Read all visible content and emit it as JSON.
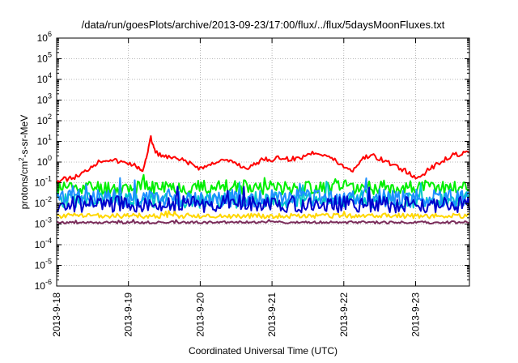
{
  "chart_data": {
    "type": "line",
    "title": "/data/run/goesPlots/archive/2013-09-23/17:00/flux/../flux/5daysMoonFluxes.txt",
    "xlabel": "Coordinated Universal Time (UTC)",
    "ylabel": "protons/cm²-s-sr-MeV",
    "ylabel_parts": {
      "pre": "protons/cm",
      "sup": "2",
      "post": "-s-sr-MeV"
    },
    "y_scale": "log",
    "ylim": [
      1e-06,
      1000000.0
    ],
    "y_ticks": [
      {
        "value": 1e-06,
        "base": "10",
        "exp": "-6"
      },
      {
        "value": 1e-05,
        "base": "10",
        "exp": "-5"
      },
      {
        "value": 0.0001,
        "base": "10",
        "exp": "-4"
      },
      {
        "value": 0.001,
        "base": "10",
        "exp": "-3"
      },
      {
        "value": 0.01,
        "base": "10",
        "exp": "-2"
      },
      {
        "value": 0.1,
        "base": "10",
        "exp": "-1"
      },
      {
        "value": 1.0,
        "base": "10",
        "exp": "0"
      },
      {
        "value": 10.0,
        "base": "10",
        "exp": "1"
      },
      {
        "value": 100.0,
        "base": "10",
        "exp": "2"
      },
      {
        "value": 1000.0,
        "base": "10",
        "exp": "3"
      },
      {
        "value": 10000.0,
        "base": "10",
        "exp": "4"
      },
      {
        "value": 100000.0,
        "base": "10",
        "exp": "5"
      },
      {
        "value": 1000000.0,
        "base": "10",
        "exp": "6"
      }
    ],
    "xlim": [
      "2013-09-18T00:00",
      "2013-09-23T18:00"
    ],
    "x_ticks": [
      "2013-9-18",
      "2013-9-19",
      "2013-9-20",
      "2013-9-21",
      "2013-9-22",
      "2013-9-23"
    ],
    "grid": true,
    "colors": {
      "axis": "#000000",
      "grid": "#a0a0a0"
    },
    "series": [
      {
        "color": "#ff0000",
        "points": [
          [
            "2013-09-18T00:00",
            0.12
          ],
          [
            "2013-09-18T03:00",
            0.15
          ],
          [
            "2013-09-18T06:00",
            0.18
          ],
          [
            "2013-09-18T09:00",
            0.3
          ],
          [
            "2013-09-18T12:00",
            0.7
          ],
          [
            "2013-09-18T15:00",
            1.2
          ],
          [
            "2013-09-18T18:00",
            1.4
          ],
          [
            "2013-09-18T21:00",
            1.0
          ],
          [
            "2013-09-19T00:00",
            0.9
          ],
          [
            "2013-09-19T03:00",
            0.6
          ],
          [
            "2013-09-19T04:30",
            0.3
          ],
          [
            "2013-09-19T06:00",
            1.8
          ],
          [
            "2013-09-19T07:30",
            15
          ],
          [
            "2013-09-19T09:00",
            3
          ],
          [
            "2013-09-19T12:00",
            1.8
          ],
          [
            "2013-09-19T15:00",
            1.5
          ],
          [
            "2013-09-19T18:00",
            1.2
          ],
          [
            "2013-09-19T21:00",
            0.8
          ],
          [
            "2013-09-20T00:00",
            0.5
          ],
          [
            "2013-09-20T03:00",
            0.7
          ],
          [
            "2013-09-20T06:00",
            1.2
          ],
          [
            "2013-09-20T09:00",
            1.1
          ],
          [
            "2013-09-20T12:00",
            0.9
          ],
          [
            "2013-09-20T15:00",
            0.5
          ],
          [
            "2013-09-20T18:00",
            0.7
          ],
          [
            "2013-09-20T21:00",
            1.5
          ],
          [
            "2013-09-21T00:00",
            1.3
          ],
          [
            "2013-09-21T03:00",
            1.6
          ],
          [
            "2013-09-21T06:00",
            1.4
          ],
          [
            "2013-09-21T09:00",
            1.5
          ],
          [
            "2013-09-21T12:00",
            2.5
          ],
          [
            "2013-09-21T15:00",
            3.0
          ],
          [
            "2013-09-21T18:00",
            2.2
          ],
          [
            "2013-09-21T21:00",
            1.2
          ],
          [
            "2013-09-22T00:00",
            0.6
          ],
          [
            "2013-09-22T03:00",
            0.4
          ],
          [
            "2013-09-22T06:00",
            1.4
          ],
          [
            "2013-09-22T09:00",
            2.2
          ],
          [
            "2013-09-22T12:00",
            1.5
          ],
          [
            "2013-09-22T15:00",
            0.9
          ],
          [
            "2013-09-22T18:00",
            0.6
          ],
          [
            "2013-09-22T21:00",
            0.35
          ],
          [
            "2013-09-23T00:00",
            0.15
          ],
          [
            "2013-09-23T03:00",
            0.3
          ],
          [
            "2013-09-23T06:00",
            0.6
          ],
          [
            "2013-09-23T09:00",
            1.2
          ],
          [
            "2013-09-23T12:00",
            2.0
          ],
          [
            "2013-09-23T15:00",
            2.5
          ],
          [
            "2013-09-23T18:00",
            2.8
          ]
        ]
      },
      {
        "color": "#00ee00",
        "base": 0.06,
        "jitter": 0.35,
        "seed": 11
      },
      {
        "color": "#00c8c8",
        "base": 0.015,
        "jitter": 0.4,
        "seed": 23
      },
      {
        "color": "#1e90ff",
        "base": 0.018,
        "jitter": 0.45,
        "seed": 37
      },
      {
        "color": "#0000cc",
        "base": 0.009,
        "jitter": 0.4,
        "seed": 53
      },
      {
        "color": "#ffd700",
        "base": 0.0025,
        "jitter": 0.12,
        "seed": 71
      },
      {
        "color": "#7b2d5b",
        "base": 0.0012,
        "jitter": 0.06,
        "seed": 97
      }
    ]
  }
}
